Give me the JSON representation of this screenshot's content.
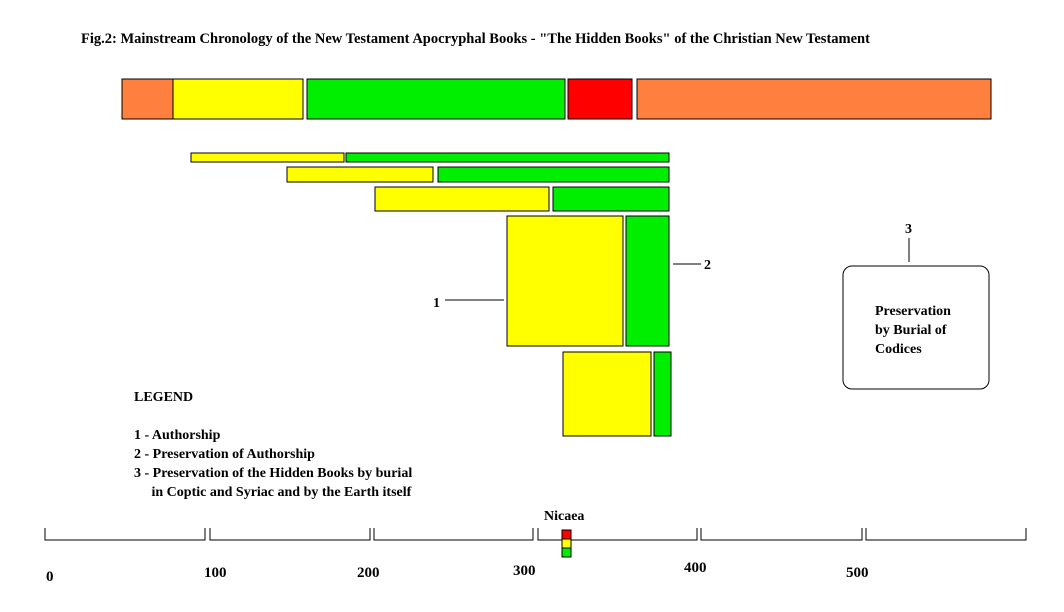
{
  "title": "Fig.2: Mainstream Chronology of the New Testament Apocryphal Books - \"The Hidden Books\" of the Christian New Testament",
  "colors": {
    "orange": "#ff7f3f",
    "yellow": "#ffff00",
    "green": "#00ee00",
    "red": "#ff0000",
    "outline": "#000000"
  },
  "top_bar": [
    {
      "color": "orange"
    },
    {
      "color": "yellow"
    },
    {
      "color": "green"
    },
    {
      "color": "red"
    },
    {
      "color": "orange"
    }
  ],
  "callouts": {
    "authorship_number": "1",
    "preservation_number": "2",
    "burial_number": "3"
  },
  "burial_box": {
    "lines": [
      "Preservation",
      "by Burial of",
      "Codices"
    ]
  },
  "legend": {
    "heading": "LEGEND",
    "items": [
      "1 - Authorship",
      "2 - Preservation of Authorship",
      "3 - Preservation of the Hidden Books by burial",
      "     in Coptic and Syriac and by the Earth itself"
    ]
  },
  "timeline": {
    "ticks": [
      "0",
      "100",
      "200",
      "300",
      "400",
      "500"
    ],
    "marker_label": "Nicaea",
    "marker_colors": [
      "red",
      "yellow",
      "green"
    ]
  }
}
